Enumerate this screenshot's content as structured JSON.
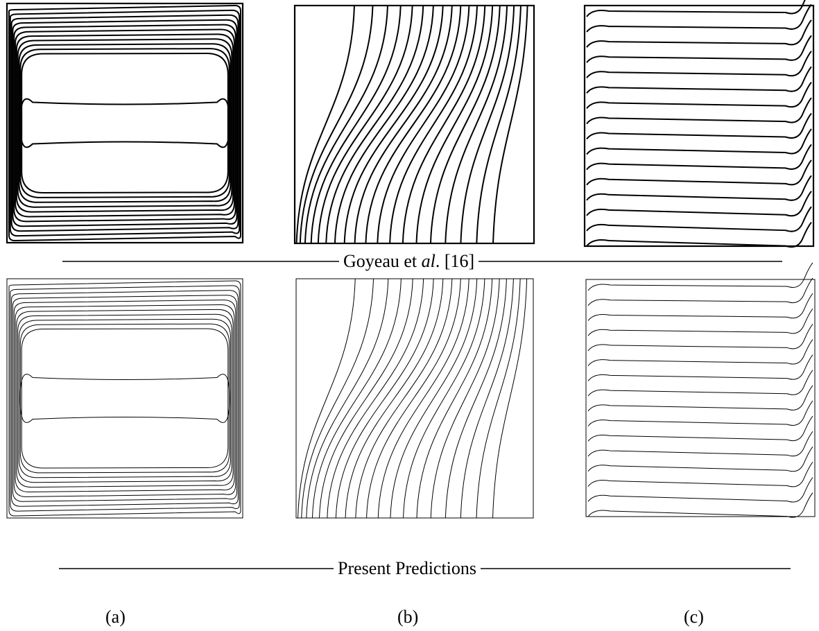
{
  "captions": {
    "top_prefix": "Goyeau et ",
    "top_italic": "al",
    "top_suffix": ". [16]",
    "bottom": "Present Predictions"
  },
  "panels": {
    "a": "(a)",
    "b": "(b)",
    "c": "(c)"
  },
  "colors": {
    "line": "#000000",
    "background": "#ffffff"
  }
}
